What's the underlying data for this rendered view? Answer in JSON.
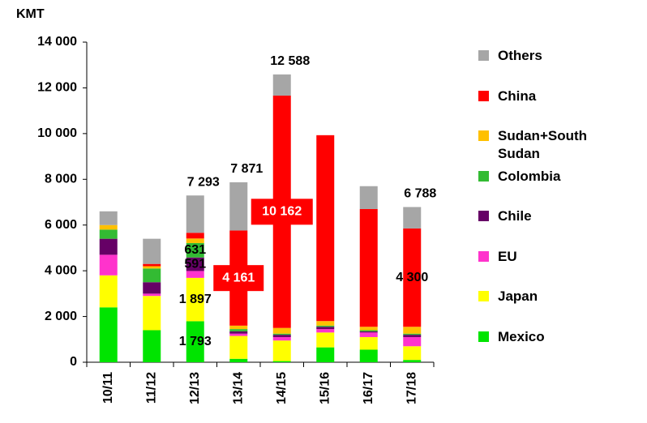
{
  "chart_data": {
    "type": "stacked_bar",
    "y_label": "KMT",
    "categories": [
      "10/11",
      "11/12",
      "12/13",
      "13/14",
      "14/15",
      "15/16",
      "16/17",
      "17/18"
    ],
    "ylim": [
      0,
      14000
    ],
    "yticks": [
      0,
      {
        "value": 2000,
        "label": "2 000"
      },
      {
        "value": 4000,
        "label": "4 000"
      },
      {
        "value": 6000,
        "label": "6 000"
      },
      {
        "value": 8000,
        "label": "8 000"
      },
      {
        "value": 10000,
        "label": "10 000"
      },
      {
        "value": 12000,
        "label": "12 000"
      },
      {
        "value": 14000,
        "label": "14 000"
      }
    ],
    "series": [
      {
        "name": "Mexico",
        "color": "#00e400",
        "values": [
          2400,
          1400,
          1793,
          150,
          50,
          650,
          550,
          100
        ],
        "value_labels": [
          null,
          null,
          "1 793",
          null,
          null,
          null,
          null,
          null
        ]
      },
      {
        "name": "Japan",
        "color": "#ffff00",
        "values": [
          1400,
          1500,
          1897,
          1000,
          900,
          650,
          550,
          600
        ],
        "value_labels": [
          null,
          null,
          "1 897",
          null,
          null,
          null,
          null,
          null
        ]
      },
      {
        "name": "EU",
        "color": "#ff33cc",
        "values": [
          900,
          100,
          300,
          100,
          150,
          150,
          200,
          400
        ],
        "value_labels": [
          null,
          null,
          null,
          null,
          null,
          null,
          null,
          null
        ]
      },
      {
        "name": "Chile",
        "color": "#660066",
        "values": [
          700,
          500,
          591,
          100,
          100,
          100,
          50,
          100
        ],
        "value_labels": [
          null,
          null,
          "591",
          null,
          null,
          null,
          null,
          null
        ]
      },
      {
        "name": "Colombia",
        "color": "#33bb33",
        "values": [
          400,
          600,
          631,
          100,
          50,
          50,
          50,
          50
        ],
        "value_labels": [
          null,
          null,
          "631",
          null,
          null,
          null,
          null,
          null
        ]
      },
      {
        "name": "Sudan+South Sudan",
        "color": "#ffc000",
        "values": [
          200,
          100,
          200,
          150,
          250,
          200,
          150,
          300
        ],
        "value_labels": [
          null,
          null,
          null,
          null,
          null,
          null,
          null,
          null
        ]
      },
      {
        "name": "China",
        "color": "#ff0000",
        "values": [
          0,
          100,
          250,
          4161,
          10162,
          8130,
          5150,
          4300
        ],
        "value_labels": [
          null,
          null,
          null,
          "4 161",
          "10 162",
          null,
          null,
          "4 300"
        ]
      },
      {
        "name": "Others",
        "color": "#a6a6a6",
        "values": [
          600,
          1100,
          1631,
          2110,
          926,
          0,
          1000,
          938
        ],
        "value_labels": [
          null,
          null,
          null,
          null,
          null,
          null,
          null,
          null
        ]
      }
    ],
    "totals": [
      null,
      null,
      7293,
      7871,
      12588,
      null,
      null,
      6788
    ],
    "total_labels": [
      null,
      null,
      "7 293",
      "7 871",
      "12 588",
      null,
      null,
      "6 788"
    ]
  }
}
